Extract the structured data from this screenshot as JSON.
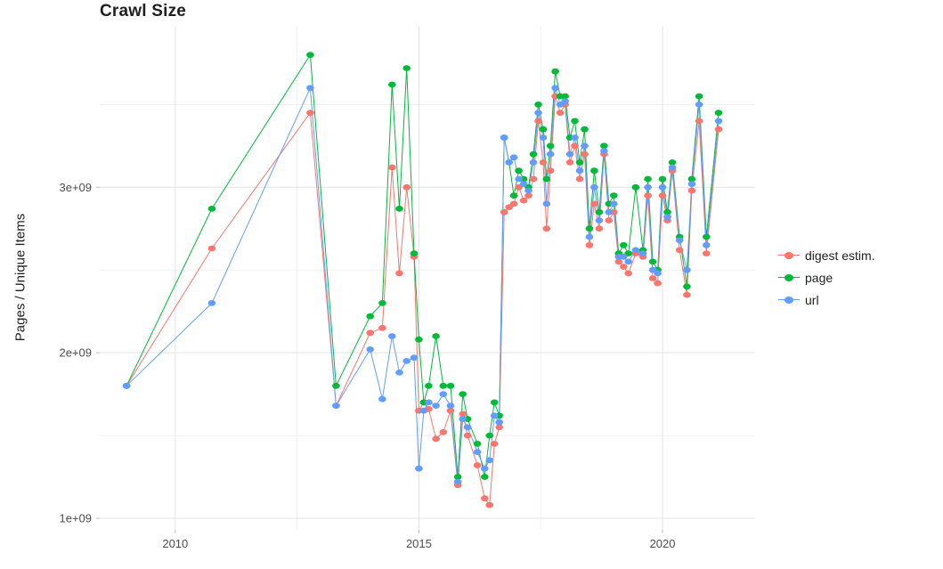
{
  "title": "Crawl Size",
  "chart_data": {
    "type": "line",
    "title": "Crawl Size",
    "xlabel": "",
    "ylabel": "Pages / Unique Items",
    "y_unit": "pages (values in units of 1e9)",
    "x_domain": [
      2008.45,
      2021.9
    ],
    "y_domain": [
      0.93,
      3.97
    ],
    "grid": true,
    "legend_position": "right",
    "x_ticks": [
      {
        "value": 2010,
        "label": "2010"
      },
      {
        "value": 2015,
        "label": "2015"
      },
      {
        "value": 2020,
        "label": "2020"
      }
    ],
    "x_minor": [
      2012.5,
      2017.5
    ],
    "y_ticks": [
      {
        "value": 1.0,
        "label": "1e+09"
      },
      {
        "value": 2.0,
        "label": "2e+09"
      },
      {
        "value": 3.0,
        "label": "3e+09"
      }
    ],
    "y_minor": [
      1.5,
      2.5,
      3.5
    ],
    "x": [
      2009.0,
      2010.75,
      2012.77,
      2013.3,
      2014.0,
      2014.25,
      2014.45,
      2014.6,
      2014.75,
      2014.9,
      2015.0,
      2015.1,
      2015.2,
      2015.35,
      2015.5,
      2015.65,
      2015.8,
      2015.9,
      2016.0,
      2016.2,
      2016.35,
      2016.45,
      2016.55,
      2016.65,
      2016.75,
      2016.85,
      2016.95,
      2017.05,
      2017.15,
      2017.25,
      2017.35,
      2017.45,
      2017.55,
      2017.62,
      2017.7,
      2017.8,
      2017.9,
      2018.0,
      2018.1,
      2018.2,
      2018.3,
      2018.4,
      2018.5,
      2018.6,
      2018.7,
      2018.8,
      2018.9,
      2019.0,
      2019.1,
      2019.2,
      2019.3,
      2019.45,
      2019.6,
      2019.7,
      2019.8,
      2019.9,
      2020.0,
      2020.1,
      2020.2,
      2020.35,
      2020.5,
      2020.6,
      2020.75,
      2020.9,
      2021.15
    ],
    "series": [
      {
        "name": "digest estim.",
        "color": "#F8766D",
        "values": [
          1.8,
          2.63,
          3.45,
          1.68,
          2.12,
          2.15,
          3.12,
          2.48,
          3.0,
          2.58,
          1.65,
          1.7,
          1.66,
          1.48,
          1.52,
          1.65,
          1.2,
          1.63,
          1.5,
          1.32,
          1.12,
          1.08,
          1.45,
          1.55,
          2.85,
          2.88,
          2.9,
          3.0,
          2.92,
          2.95,
          3.05,
          3.4,
          3.15,
          2.75,
          3.1,
          3.55,
          3.45,
          3.5,
          3.15,
          3.25,
          3.05,
          3.2,
          2.65,
          2.9,
          2.75,
          3.2,
          2.8,
          2.85,
          2.55,
          2.52,
          2.48,
          2.6,
          2.58,
          2.95,
          2.45,
          2.42,
          2.95,
          2.8,
          3.1,
          2.62,
          2.35,
          2.98,
          3.4,
          2.6,
          3.35
        ]
      },
      {
        "name": "page",
        "color": "#00BA38",
        "values": [
          1.8,
          2.87,
          3.8,
          1.8,
          2.22,
          2.3,
          3.62,
          2.87,
          3.72,
          2.6,
          2.08,
          1.7,
          1.8,
          2.1,
          1.8,
          1.8,
          1.25,
          1.75,
          1.6,
          1.45,
          1.25,
          1.5,
          1.7,
          1.62,
          3.3,
          3.15,
          2.95,
          3.1,
          3.05,
          3.0,
          3.2,
          3.5,
          3.35,
          3.05,
          3.25,
          3.7,
          3.55,
          3.55,
          3.3,
          3.4,
          3.15,
          3.35,
          2.75,
          3.1,
          2.85,
          3.25,
          2.9,
          2.95,
          2.6,
          2.65,
          2.6,
          3.0,
          2.62,
          3.05,
          2.55,
          2.5,
          3.05,
          2.85,
          3.15,
          2.7,
          2.4,
          3.05,
          3.55,
          2.7,
          3.45
        ]
      },
      {
        "name": "url",
        "color": "#619CFF",
        "values": [
          1.8,
          2.3,
          3.6,
          1.68,
          2.02,
          1.72,
          2.1,
          1.88,
          1.95,
          1.97,
          1.3,
          1.65,
          1.7,
          1.68,
          1.75,
          1.68,
          1.22,
          1.6,
          1.55,
          1.4,
          1.3,
          1.35,
          1.62,
          1.58,
          3.3,
          3.15,
          3.18,
          3.05,
          3.02,
          2.98,
          3.15,
          3.45,
          3.3,
          2.9,
          3.2,
          3.6,
          3.5,
          3.52,
          3.2,
          3.3,
          3.1,
          3.25,
          2.7,
          3.0,
          2.8,
          3.22,
          2.85,
          2.9,
          2.58,
          2.58,
          2.55,
          2.62,
          2.6,
          3.0,
          2.5,
          2.48,
          3.0,
          2.82,
          3.12,
          2.68,
          2.5,
          3.02,
          3.5,
          2.65,
          3.4
        ]
      }
    ]
  },
  "legend": {
    "entries": [
      {
        "label": "digest estim.",
        "color": "#F8766D"
      },
      {
        "label": "page",
        "color": "#00BA38"
      },
      {
        "label": "url",
        "color": "#619CFF"
      }
    ]
  },
  "colors": {
    "background": "#FFFFFF",
    "grid_major": "#E3E3E3",
    "grid_minor": "#F1F1F1",
    "axis_text": "#4D4D4D",
    "tick_mark": "#BFBFBF",
    "title_text": "#1F1F1F"
  }
}
